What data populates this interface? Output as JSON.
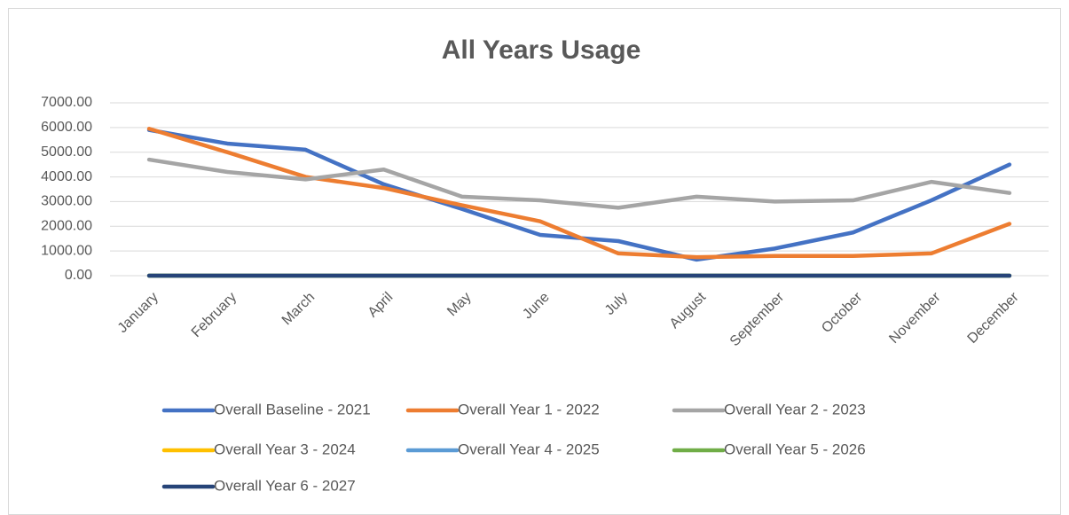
{
  "chart_data": {
    "type": "line",
    "title": "All Years Usage",
    "categories": [
      "January",
      "February",
      "March",
      "April",
      "May",
      "June",
      "July",
      "August",
      "September",
      "October",
      "November",
      "December"
    ],
    "series": [
      {
        "name": "Overall Baseline - 2021",
        "color": "#4472c4",
        "values": [
          5900,
          5350,
          5100,
          3700,
          2700,
          1650,
          1400,
          650,
          1100,
          1750,
          3050,
          4500
        ]
      },
      {
        "name": "Overall Year 1 - 2022",
        "color": "#ed7d31",
        "values": [
          5950,
          5000,
          4000,
          3550,
          2850,
          2200,
          900,
          750,
          800,
          800,
          900,
          2100
        ]
      },
      {
        "name": "Overall Year 2 - 2023",
        "color": "#a5a5a5",
        "values": [
          4700,
          4200,
          3900,
          4300,
          3200,
          3050,
          2750,
          3200,
          3000,
          3050,
          3800,
          3350
        ]
      },
      {
        "name": "Overall Year 3 - 2024",
        "color": "#ffc000",
        "values": [
          0,
          0,
          0,
          0,
          0,
          0,
          0,
          0,
          0,
          0,
          0,
          0
        ]
      },
      {
        "name": "Overall Year 4 - 2025",
        "color": "#5b9bd5",
        "values": [
          0,
          0,
          0,
          0,
          0,
          0,
          0,
          0,
          0,
          0,
          0,
          0
        ]
      },
      {
        "name": "Overall Year 5 - 2026",
        "color": "#70ad47",
        "values": [
          0,
          0,
          0,
          0,
          0,
          0,
          0,
          0,
          0,
          0,
          0,
          0
        ]
      },
      {
        "name": "Overall Year 6 - 2027",
        "color": "#264478",
        "values": [
          0,
          0,
          0,
          0,
          0,
          0,
          0,
          0,
          0,
          0,
          0,
          0
        ]
      }
    ],
    "ylim": [
      0,
      7000
    ],
    "yticks": [
      {
        "value": 0,
        "label": "0.00"
      },
      {
        "value": 1000,
        "label": "1000.00"
      },
      {
        "value": 2000,
        "label": "2000.00"
      },
      {
        "value": 3000,
        "label": "3000.00"
      },
      {
        "value": 4000,
        "label": "4000.00"
      },
      {
        "value": 5000,
        "label": "5000.00"
      },
      {
        "value": 6000,
        "label": "6000.00"
      },
      {
        "value": 7000,
        "label": "7000.00"
      }
    ],
    "grid": true
  }
}
